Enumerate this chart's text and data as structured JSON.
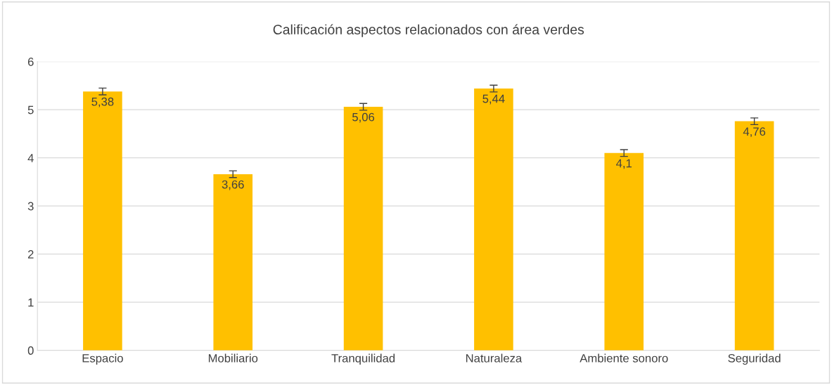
{
  "chart_data": {
    "type": "bar",
    "title": "Calificación aspectos relacionados con área verdes",
    "categories": [
      "Espacio",
      "Mobiliario",
      "Tranquilidad",
      "Naturaleza",
      "Ambiente sonoro",
      "Seguridad"
    ],
    "values": [
      5.38,
      3.66,
      5.06,
      5.44,
      4.1,
      4.76
    ],
    "value_labels": [
      "5,38",
      "3,66",
      "5,06",
      "5,44",
      "4,1",
      "4,76"
    ],
    "errors": [
      0.07,
      0.07,
      0.07,
      0.07,
      0.07,
      0.07
    ],
    "color": "#ffc000",
    "ylim": [
      0,
      6
    ],
    "yticks": [
      0,
      1,
      2,
      3,
      4,
      5,
      6
    ],
    "grid": "y"
  }
}
